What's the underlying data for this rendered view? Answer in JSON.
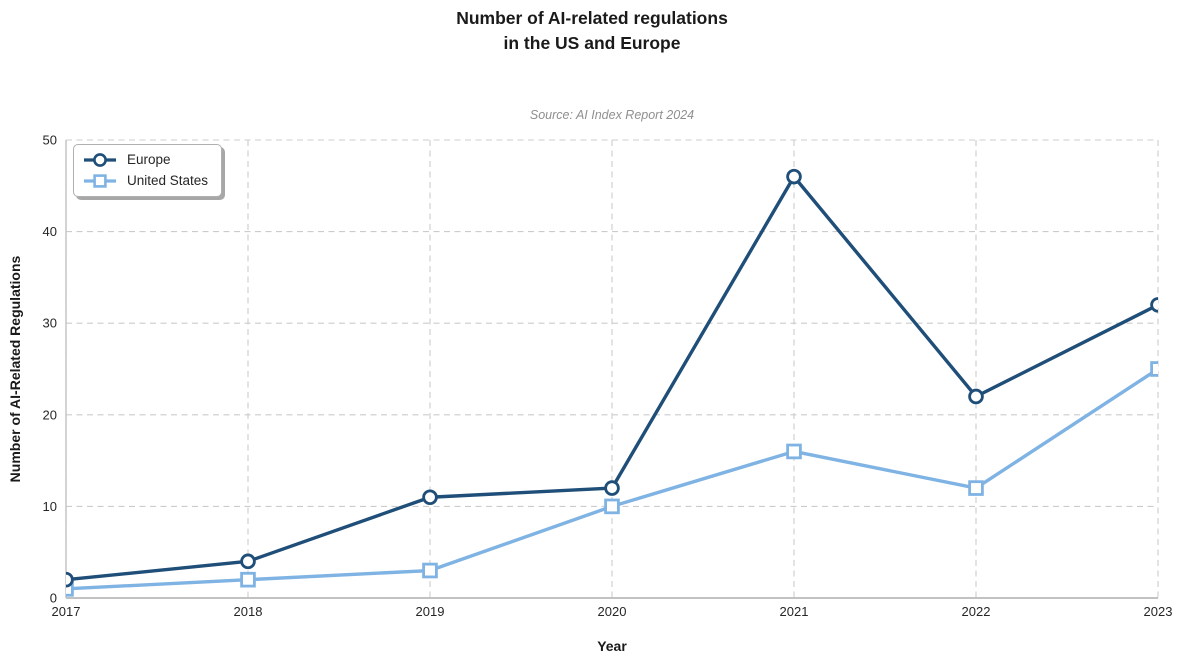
{
  "title": {
    "line1": "Number of AI-related regulations",
    "line2": "in the US and Europe"
  },
  "subtitle": "Source: AI Index Report 2024",
  "axes": {
    "x_label": "Year",
    "y_label": "Number of AI-Related Regulations"
  },
  "colors": {
    "europe": "#1f4e79",
    "united_states": "#7fb3e3",
    "grid": "#cccccc",
    "marker_fill": "#ffffff",
    "text": "#262626",
    "subtitle_text": "#8f8f8f"
  },
  "chart_data": {
    "type": "line",
    "title": "Number of AI-related regulations in the US and Europe",
    "subtitle": "Source: AI Index Report 2024",
    "x": [
      2017,
      2018,
      2019,
      2020,
      2021,
      2022,
      2023
    ],
    "series": [
      {
        "name": "Europe",
        "values": [
          2,
          4,
          11,
          12,
          46,
          22,
          32
        ],
        "color": "#1f4e79",
        "marker": "circle"
      },
      {
        "name": "United States",
        "values": [
          1,
          2,
          3,
          10,
          16,
          12,
          25
        ],
        "color": "#7fb3e3",
        "marker": "square"
      }
    ],
    "xlabel": "Year",
    "ylabel": "Number of AI-Related Regulations",
    "ylim": [
      0,
      50
    ],
    "yticks": [
      0,
      10,
      20,
      30,
      40,
      50
    ],
    "grid": true,
    "grid_style": "dashed",
    "legend_position": "upper left"
  }
}
